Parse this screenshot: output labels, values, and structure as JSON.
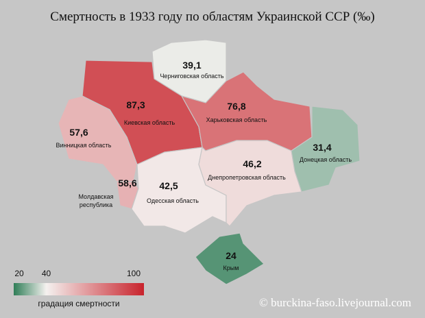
{
  "title": "Смертность в 1933 году по областям Украинской ССР (‰)",
  "regions": [
    {
      "name": "Черниговская область",
      "value": 39.1,
      "value_label": "39,1"
    },
    {
      "name": "Киевская область",
      "value": 87.3,
      "value_label": "87,3"
    },
    {
      "name": "Харьковская область",
      "value": 76.8,
      "value_label": "76,8"
    },
    {
      "name": "Винницкая область",
      "value": 57.6,
      "value_label": "57,6"
    },
    {
      "name": "Молдавская республика",
      "value": 58.6,
      "value_label": "58,6"
    },
    {
      "name": "Одесская область",
      "value": 42.5,
      "value_label": "42,5"
    },
    {
      "name": "Днепропетровская область",
      "value": 46.2,
      "value_label": "46,2"
    },
    {
      "name": "Донецкая область",
      "value": 31.4,
      "value_label": "31,4"
    },
    {
      "name": "Крым",
      "value": 24,
      "value_label": "24"
    }
  ],
  "legend": {
    "title": "градация смертности",
    "ticks": [
      20,
      40,
      100
    ],
    "colors": [
      "#2f7d57",
      "#f4f1ef",
      "#c8232c"
    ]
  },
  "credit": "© burckina-faso.livejournal.com"
}
